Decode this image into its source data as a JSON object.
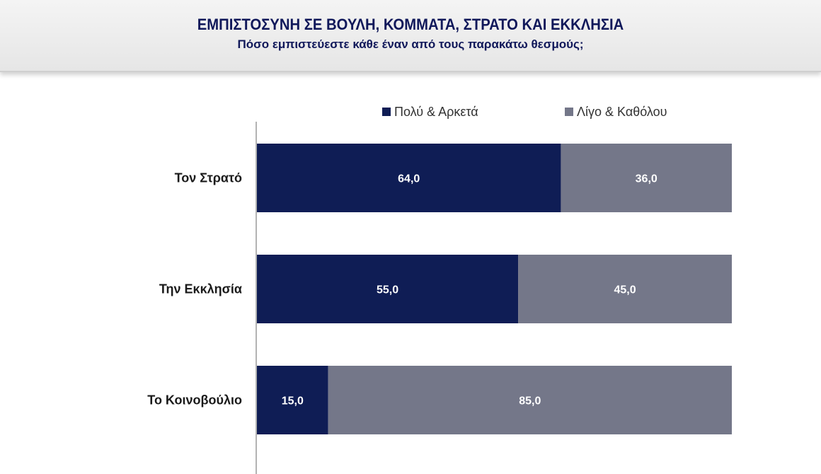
{
  "header": {
    "title": "ΕΜΠΙΣΤΟΣΥΝΗ ΣΕ ΒΟΥΛΗ, ΚΟΜΜΑΤΑ, ΣΤΡΑΤΟ ΚΑΙ ΕΚΚΛΗΣΙΑ",
    "subtitle": "Πόσο εμπιστεύεστε κάθε έναν από τους παρακάτω θεσμούς;"
  },
  "chart_data": {
    "type": "bar",
    "orientation": "horizontal",
    "stacked": true,
    "title": "ΕΜΠΙΣΤΟΣΥΝΗ ΣΕ ΒΟΥΛΗ, ΚΟΜΜΑΤΑ, ΣΤΡΑΤΟ ΚΑΙ ΕΚΚΛΗΣΙΑ",
    "subtitle": "Πόσο εμπιστεύεστε κάθε έναν από τους παρακάτω θεσμούς;",
    "categories": [
      "Τον Στρατό",
      "Την Εκκλησία",
      "Το Κοινοβούλιο"
    ],
    "series": [
      {
        "name": "Πολύ & Αρκετά",
        "values": [
          64.0,
          55.0,
          15.0
        ],
        "labels": [
          "64,0",
          "55,0",
          "15,0"
        ],
        "color": "#0f1d55"
      },
      {
        "name": "Λίγο & Καθόλου",
        "values": [
          36.0,
          45.0,
          85.0
        ],
        "labels": [
          "36,0",
          "45,0",
          "85,0"
        ],
        "color": "#747789"
      }
    ],
    "xlim": [
      0,
      100
    ],
    "grid": false,
    "legend": "top"
  }
}
